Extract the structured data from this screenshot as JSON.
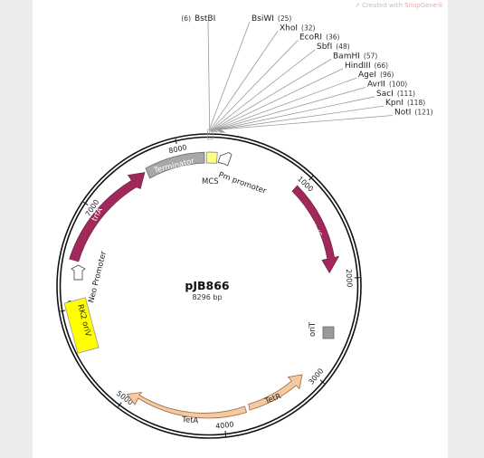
{
  "watermark": {
    "prefix": "Created with ",
    "brand": "SnapGene®"
  },
  "plasmid": {
    "name": "pJB866",
    "size_label": "8296 bp",
    "length_bp": 8296
  },
  "colors": {
    "backbone": "#111111",
    "arrow_magenta": "#a0285a",
    "tetA_fill": "#f6c9a0",
    "terminator_fill": "#a8a8a8",
    "rk2_fill": "#ffff00",
    "mcs_fill": "#ffff88",
    "oriT_fill": "#9a9a9a",
    "leader_line": "#9a9a9a"
  },
  "restriction_sites": [
    {
      "label": "BstBI",
      "position": "(6)",
      "pos_number": 6
    },
    {
      "label": "BsiWI",
      "position": "(25)",
      "pos_number": 25
    },
    {
      "label": "XhoI",
      "position": "(32)",
      "pos_number": 32
    },
    {
      "label": "EcoRI",
      "position": "(36)",
      "pos_number": 36
    },
    {
      "label": "SbfI",
      "position": "(48)",
      "pos_number": 48
    },
    {
      "label": "BamHI",
      "position": "(57)",
      "pos_number": 57
    },
    {
      "label": "HindIII",
      "position": "(66)",
      "pos_number": 66
    },
    {
      "label": "AgeI",
      "position": "(96)",
      "pos_number": 96
    },
    {
      "label": "AvrII",
      "position": "(100)",
      "pos_number": 100
    },
    {
      "label": "SacI",
      "position": "(111)",
      "pos_number": 111
    },
    {
      "label": "KpnI",
      "position": "(118)",
      "pos_number": 118
    },
    {
      "label": "NotI",
      "position": "(121)",
      "pos_number": 121
    }
  ],
  "ticks": [
    {
      "label": "1000",
      "bp": 1000
    },
    {
      "label": "2000",
      "bp": 2000
    },
    {
      "label": "3000",
      "bp": 3000
    },
    {
      "label": "4000",
      "bp": 4000
    },
    {
      "label": "5000",
      "bp": 5000
    },
    {
      "label": "6000",
      "bp": 6000
    },
    {
      "label": "7000",
      "bp": 7000
    },
    {
      "label": "8000",
      "bp": 8000
    }
  ],
  "features": {
    "terminator": "Terminator",
    "mcs": "MCS",
    "pm_promoter": "Pm promoter",
    "xyls": "XylS",
    "orit": "oriT",
    "tetr": "TetR",
    "teta": "TetA",
    "rk2_oriv": "RK2 oriV",
    "neo_promoter": "Neo Promoter",
    "trfa": "trfA"
  }
}
